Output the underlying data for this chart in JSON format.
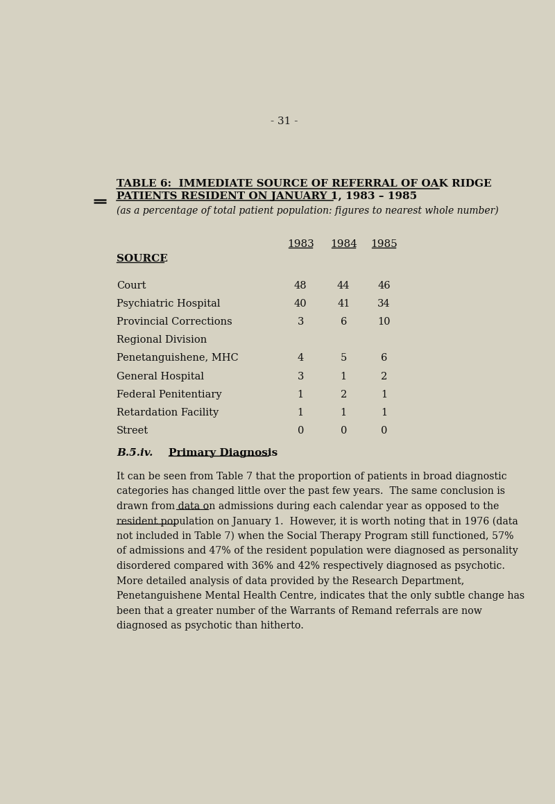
{
  "page_number": "- 31 -",
  "bg_color": "#d6d2c2",
  "title_line1": "TABLE 6:  IMMEDIATE SOURCE OF REFERRAL OF OAK RIDGE",
  "title_line2": "PATIENTS RESIDENT ON JANUARY 1, 1983 – 1985",
  "subtitle": "(as a percentage of total patient population: figures to nearest whole number)",
  "col_headers": [
    "1983",
    "1984",
    "1985"
  ],
  "source_label": "SOURCE",
  "rows": [
    {
      "source": "Court",
      "v1983": "48",
      "v1984": "44",
      "v1985": "46"
    },
    {
      "source": "Psychiatric Hospital",
      "v1983": "40",
      "v1984": "41",
      "v1985": "34"
    },
    {
      "source": "Provincial Corrections",
      "v1983": "3",
      "v1984": "6",
      "v1985": "10"
    },
    {
      "source": "Regional Division",
      "v1983": "",
      "v1984": "",
      "v1985": ""
    },
    {
      "source": "Penetanguishene, MHC",
      "v1983": "4",
      "v1984": "5",
      "v1985": "6"
    },
    {
      "source": "General Hospital",
      "v1983": "3",
      "v1984": "1",
      "v1985": "2"
    },
    {
      "source": "Federal Penitentiary",
      "v1983": "1",
      "v1984": "2",
      "v1985": "1"
    },
    {
      "source": "Retardation Facility",
      "v1983": "1",
      "v1984": "1",
      "v1985": "1"
    },
    {
      "source": "Street",
      "v1983": "0",
      "v1984": "0",
      "v1985": "0"
    }
  ],
  "section_label": "B.5.iv.",
  "section_title": "Primary Diagnosis",
  "body_lines": [
    "It can be seen from Table 7 that the proportion of patients in broad diagnostic",
    "categories has changed little over the past few years.  The same conclusion is",
    "drawn from data on admissions during each calendar year as opposed to the",
    "resident population on January 1.  However, it is worth noting that in 1976 (data",
    "not included in Table 7) when the Social Therapy Program still functioned, 57%",
    "of admissions and 47% of the resident population were diagnosed as personality",
    "disordered compared with 36% and 42% respectively diagnosed as psychotic.",
    "More detailed analysis of data provided by the Research Department,",
    "Penetanguishene Mental Health Centre, indicates that the only subtle change has",
    "been that a greater number of the Warrants of Remand referrals are now",
    "diagnosed as psychotic than hitherto."
  ],
  "underline_line2_word": "admissions",
  "underline_line2_prefix": "drawn from data on ",
  "underline_line3_word": "resident population",
  "underline_line3_prefix": ""
}
